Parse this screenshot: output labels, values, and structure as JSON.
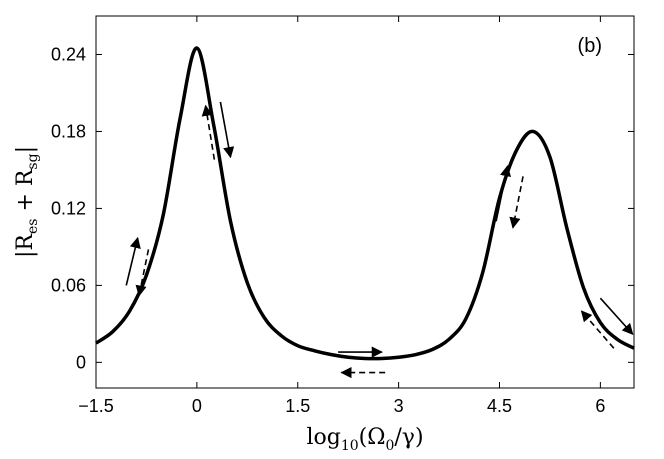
{
  "chart_data": {
    "type": "line",
    "title": "",
    "panel_label": "(b)",
    "xlabel": "log10(Ω0/γ)",
    "xlabel_parts": {
      "prefix": "log",
      "sub": "10",
      "body": "(Ω",
      "sub2": "0",
      "suffix": "/γ)"
    },
    "ylabel": "|Res + Rsg|",
    "ylabel_parts": {
      "open": "|R",
      "sub1": "es",
      "mid": " + R",
      "sub2": "sg",
      "close": "|"
    },
    "xlim": [
      -1.5,
      6.5
    ],
    "ylim": [
      -0.02,
      0.27
    ],
    "xticks": [
      -1.5,
      0,
      1.5,
      3,
      4.5,
      6
    ],
    "xtick_labels": [
      "−1.5",
      "0",
      "1.5",
      "3",
      "4.5",
      "6"
    ],
    "yticks": [
      0,
      0.06,
      0.12,
      0.18,
      0.24
    ],
    "ytick_labels": [
      "0",
      "0.06",
      "0.12",
      "0.18",
      "0.24"
    ],
    "grid": false,
    "series": [
      {
        "color": "#000000",
        "x": [
          -1.5,
          -1.25,
          -1.0,
          -0.75,
          -0.5,
          -0.25,
          0.0,
          0.25,
          0.5,
          0.75,
          1.0,
          1.25,
          1.5,
          1.75,
          2.0,
          2.25,
          2.5,
          2.75,
          3.0,
          3.25,
          3.5,
          3.75,
          4.0,
          4.25,
          4.5,
          4.75,
          5.0,
          5.25,
          5.5,
          5.75,
          6.0,
          6.25,
          6.5
        ],
        "y": [
          0.015,
          0.024,
          0.04,
          0.068,
          0.115,
          0.19,
          0.245,
          0.185,
          0.11,
          0.062,
          0.035,
          0.021,
          0.013,
          0.009,
          0.006,
          0.004,
          0.003,
          0.003,
          0.004,
          0.006,
          0.01,
          0.018,
          0.034,
          0.07,
          0.128,
          0.165,
          0.18,
          0.16,
          0.105,
          0.058,
          0.031,
          0.018,
          0.011
        ]
      }
    ],
    "annotations": [
      {
        "style": "solid",
        "from": [
          -1.05,
          0.06
        ],
        "to": [
          -0.88,
          0.097
        ]
      },
      {
        "style": "dashed",
        "from": [
          -0.72,
          0.088
        ],
        "to": [
          -0.86,
          0.052
        ]
      },
      {
        "style": "solid",
        "from": [
          0.35,
          0.203
        ],
        "to": [
          0.5,
          0.16
        ]
      },
      {
        "style": "dashed",
        "from": [
          0.26,
          0.158
        ],
        "to": [
          0.13,
          0.2
        ]
      },
      {
        "style": "solid",
        "from": [
          2.1,
          0.008
        ],
        "to": [
          2.75,
          0.008
        ]
      },
      {
        "style": "dashed",
        "from": [
          2.8,
          -0.008
        ],
        "to": [
          2.15,
          -0.008
        ]
      },
      {
        "style": "solid",
        "from": [
          4.45,
          0.11
        ],
        "to": [
          4.62,
          0.153
        ]
      },
      {
        "style": "dashed",
        "from": [
          4.85,
          0.145
        ],
        "to": [
          4.7,
          0.105
        ]
      },
      {
        "style": "solid",
        "from": [
          6.0,
          0.05
        ],
        "to": [
          6.48,
          0.022
        ]
      },
      {
        "style": "dashed",
        "from": [
          6.2,
          0.011
        ],
        "to": [
          5.72,
          0.04
        ]
      }
    ]
  }
}
